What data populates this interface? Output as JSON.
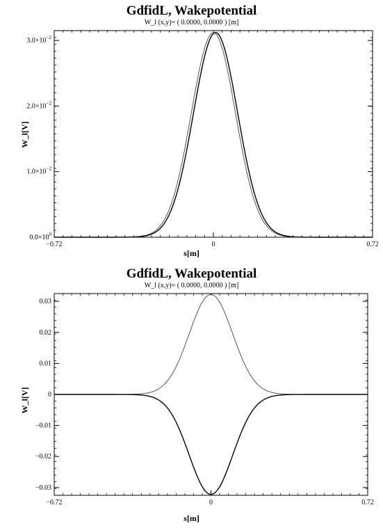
{
  "chart_data": [
    {
      "type": "line",
      "title": "GdfidL, Wakepotential",
      "subtitle": "W_l (x,y)= ( 0.0000, 0.0000 ) [m]",
      "xlabel": "s[m]",
      "ylabel": "W_l[V]",
      "xlim": [
        -0.72,
        0.72
      ],
      "ylim": [
        0,
        0.0315
      ],
      "x_tick_labels": [
        "-0.72",
        "0",
        "0.72"
      ],
      "y_ticks": [
        {
          "value": 0.0,
          "mantissa": "0.0×10",
          "exp": "0"
        },
        {
          "value": 0.01,
          "mantissa": "1.0×10",
          "exp": "-2"
        },
        {
          "value": 0.02,
          "mantissa": "2.0×10",
          "exp": "-2"
        },
        {
          "value": 0.03,
          "mantissa": "3.0×10",
          "exp": "-2"
        }
      ],
      "grid": false,
      "series": [
        {
          "curve": "gaussian",
          "center": 0.0,
          "sigma": 0.1,
          "amplitude": 0.0312,
          "color": "#555555"
        },
        {
          "curve": "gaussian",
          "center": 0.01,
          "sigma": 0.1,
          "amplitude": 0.0312,
          "color": "#000000"
        }
      ]
    },
    {
      "type": "line",
      "title": "GdfidL, Wakepotential",
      "subtitle": "W_l (x,y)= ( 0.0000, 0.0000 ) [m]",
      "xlabel": "s[m]",
      "ylabel": "W_l[V]",
      "xlim": [
        -0.72,
        0.72
      ],
      "ylim": [
        -0.0325,
        0.0325
      ],
      "x_tick_labels": [
        "-0.72",
        "0",
        "0.72"
      ],
      "y_ticks": [
        {
          "value": 0.03,
          "label": "0.03"
        },
        {
          "value": 0.02,
          "label": "0.02"
        },
        {
          "value": 0.01,
          "label": "0.01"
        },
        {
          "value": 0.0,
          "label": "0"
        },
        {
          "value": -0.01,
          "label": "-0.01"
        },
        {
          "value": -0.02,
          "label": "-0.02"
        },
        {
          "value": -0.03,
          "label": "-0.03"
        }
      ],
      "grid": false,
      "series": [
        {
          "curve": "gaussian",
          "center": 0.0,
          "sigma": 0.1,
          "amplitude": 0.0322,
          "color": "#555555"
        },
        {
          "curve": "gaussian",
          "center": 0.0,
          "sigma": 0.1,
          "amplitude": -0.0322,
          "color": "#000000"
        }
      ]
    }
  ]
}
